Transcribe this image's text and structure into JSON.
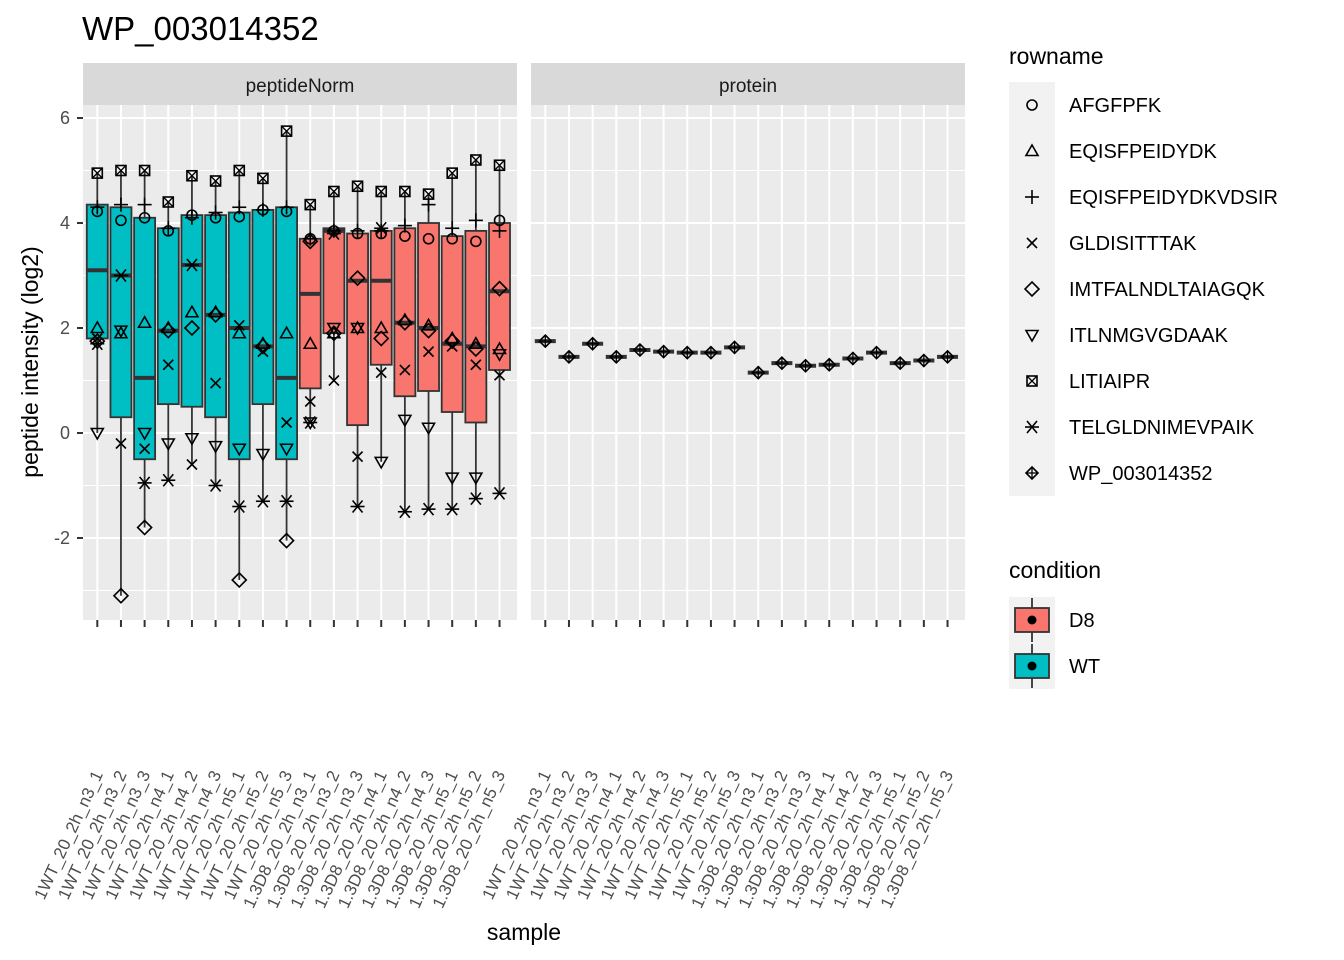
{
  "chart_data": {
    "type": "boxplot",
    "title": "WP_003014352",
    "xlabel": "sample",
    "ylabel": "peptide intensity (log2)",
    "ylim": [
      -3.6,
      6.1
    ],
    "yticks": [
      -2,
      0,
      2,
      4,
      6
    ],
    "ytick_labels": [
      "-2",
      "0",
      "2",
      "4",
      "6"
    ],
    "grid": true,
    "legend_position": "right",
    "panels": [
      "peptideNorm",
      "protein"
    ],
    "samples": [
      "1WT_20_2h_n3_1",
      "1WT_20_2h_n3_2",
      "1WT_20_2h_n3_3",
      "1WT_20_2h_n4_1",
      "1WT_20_2h_n4_2",
      "1WT_20_2h_n4_3",
      "1WT_20_2h_n5_1",
      "1WT_20_2h_n5_2",
      "1WT_20_2h_n5_3",
      "1.3D8_20_2h_n3_1",
      "1.3D8_20_2h_n3_2",
      "1.3D8_20_2h_n3_3",
      "1.3D8_20_2h_n4_1",
      "1.3D8_20_2h_n4_2",
      "1.3D8_20_2h_n4_3",
      "1.3D8_20_2h_n5_1",
      "1.3D8_20_2h_n5_2",
      "1.3D8_20_2h_n5_3"
    ],
    "sample_condition": [
      "WT",
      "WT",
      "WT",
      "WT",
      "WT",
      "WT",
      "WT",
      "WT",
      "WT",
      "D8",
      "D8",
      "D8",
      "D8",
      "D8",
      "D8",
      "D8",
      "D8",
      "D8"
    ],
    "colors": {
      "D8": "#f8766d",
      "WT": "#00bfc4"
    },
    "legend_rowname": {
      "title": "rowname",
      "entries": [
        {
          "label": "AFGFPFK",
          "shape": "circle"
        },
        {
          "label": "EQISFPEIDYDK",
          "shape": "triangle"
        },
        {
          "label": "EQISFPEIDYDKVDSIR",
          "shape": "plus"
        },
        {
          "label": "GLDISITTTAK",
          "shape": "cross"
        },
        {
          "label": "IMTFALNDLTAIAGQK",
          "shape": "diamond"
        },
        {
          "label": "ITLNMGVGDAAK",
          "shape": "triangle-down"
        },
        {
          "label": "LITIAIPR",
          "shape": "square-cross"
        },
        {
          "label": "TELGLDNIMEVPAIK",
          "shape": "asterisk"
        },
        {
          "label": "WP_003014352",
          "shape": "diamond-plus"
        }
      ]
    },
    "legend_condition": {
      "title": "condition",
      "entries": [
        {
          "label": "D8",
          "color": "#f8766d"
        },
        {
          "label": "WT",
          "color": "#00bfc4"
        }
      ]
    },
    "peptide_values": {
      "AFGFPFK": [
        4.22,
        4.05,
        4.1,
        3.85,
        4.15,
        4.1,
        4.12,
        4.25,
        4.22,
        3.7,
        3.85,
        3.8,
        3.8,
        3.75,
        3.7,
        3.7,
        3.65,
        4.05
      ],
      "EQISFPEIDYDK": [
        2.0,
        1.9,
        2.1,
        2.0,
        2.3,
        2.3,
        1.9,
        1.7,
        1.9,
        1.7,
        1.9,
        2.0,
        2.0,
        2.15,
        2.05,
        1.8,
        1.7,
        1.6
      ],
      "EQISFPEIDYDKVDSIR": [
        4.3,
        4.35,
        4.35,
        3.9,
        4.1,
        4.2,
        4.3,
        4.25,
        4.3,
        3.7,
        3.85,
        3.85,
        3.85,
        3.95,
        4.35,
        3.9,
        4.05,
        3.85
      ],
      "GLDISITTTAK": [
        1.8,
        -0.2,
        -0.3,
        1.3,
        -0.6,
        0.95,
        2.05,
        1.55,
        0.2,
        0.6,
        1.0,
        -0.45,
        1.15,
        1.2,
        1.55,
        1.65,
        1.3,
        1.1
      ],
      "IMTFALNDLTAIAGQK": [
        1.75,
        -3.1,
        -1.8,
        1.95,
        2.0,
        2.25,
        -2.8,
        1.65,
        -2.05,
        3.65,
        1.9,
        2.95,
        1.8,
        2.1,
        1.95,
        1.75,
        1.6,
        2.75
      ],
      "ITLNMGVGDAAK": [
        0.0,
        1.95,
        0.0,
        -0.2,
        -0.1,
        -0.25,
        -0.3,
        -0.4,
        -0.3,
        0.2,
        2.0,
        2.0,
        -0.55,
        0.25,
        0.1,
        -0.85,
        -0.85,
        1.5
      ],
      "LITIAIPR": [
        4.95,
        5.0,
        5.0,
        4.4,
        4.9,
        4.8,
        5.0,
        4.85,
        5.75,
        4.35,
        4.6,
        4.7,
        4.6,
        4.6,
        4.55,
        4.95,
        5.2,
        5.1
      ],
      "TELGLDNIMEVPAIK": [
        1.7,
        3.0,
        -0.95,
        -0.9,
        3.2,
        -1.0,
        -1.4,
        -1.3,
        -1.3,
        0.2,
        3.8,
        -1.4,
        3.9,
        -1.5,
        -1.45,
        -1.45,
        -1.25,
        -1.15
      ]
    },
    "boxes": [
      {
        "q1": 1.8,
        "median": 3.1,
        "q3": 4.35,
        "ymin": 0.0,
        "ymax": 4.95
      },
      {
        "q1": 0.3,
        "median": 3.0,
        "q3": 4.3,
        "ymin": -3.1,
        "ymax": 5.0
      },
      {
        "q1": -0.5,
        "median": 1.05,
        "q3": 4.1,
        "ymin": -1.8,
        "ymax": 5.0
      },
      {
        "q1": 0.55,
        "median": 1.95,
        "q3": 3.9,
        "ymin": -0.9,
        "ymax": 4.4
      },
      {
        "q1": 0.5,
        "median": 3.2,
        "q3": 4.15,
        "ymin": -0.6,
        "ymax": 4.9
      },
      {
        "q1": 0.3,
        "median": 2.25,
        "q3": 4.15,
        "ymin": -1.0,
        "ymax": 4.8
      },
      {
        "q1": -0.5,
        "median": 2.0,
        "q3": 4.2,
        "ymin": -2.8,
        "ymax": 5.0
      },
      {
        "q1": 0.55,
        "median": 1.65,
        "q3": 4.25,
        "ymin": -1.3,
        "ymax": 4.85
      },
      {
        "q1": -0.5,
        "median": 1.05,
        "q3": 4.3,
        "ymin": -2.05,
        "ymax": 5.75
      },
      {
        "q1": 0.85,
        "median": 2.65,
        "q3": 3.7,
        "ymin": 0.2,
        "ymax": 4.35
      },
      {
        "q1": 1.9,
        "median": 3.85,
        "q3": 3.9,
        "ymin": 1.0,
        "ymax": 4.6
      },
      {
        "q1": 0.15,
        "median": 2.9,
        "q3": 3.8,
        "ymin": -1.4,
        "ymax": 4.7
      },
      {
        "q1": 1.3,
        "median": 2.9,
        "q3": 3.85,
        "ymin": -0.55,
        "ymax": 4.6
      },
      {
        "q1": 0.7,
        "median": 2.1,
        "q3": 3.9,
        "ymin": -1.5,
        "ymax": 4.6
      },
      {
        "q1": 0.8,
        "median": 2.0,
        "q3": 4.0,
        "ymin": -1.45,
        "ymax": 4.55
      },
      {
        "q1": 0.4,
        "median": 1.7,
        "q3": 3.75,
        "ymin": -1.45,
        "ymax": 4.95
      },
      {
        "q1": 0.2,
        "median": 1.65,
        "q3": 3.85,
        "ymin": -1.25,
        "ymax": 5.2
      },
      {
        "q1": 1.2,
        "median": 2.7,
        "q3": 4.0,
        "ymin": -1.15,
        "ymax": 5.1
      }
    ],
    "protein_values": [
      1.75,
      1.45,
      1.7,
      1.45,
      1.58,
      1.55,
      1.53,
      1.53,
      1.63,
      1.15,
      1.33,
      1.28,
      1.3,
      1.42,
      1.53,
      1.33,
      1.38,
      1.45
    ]
  }
}
